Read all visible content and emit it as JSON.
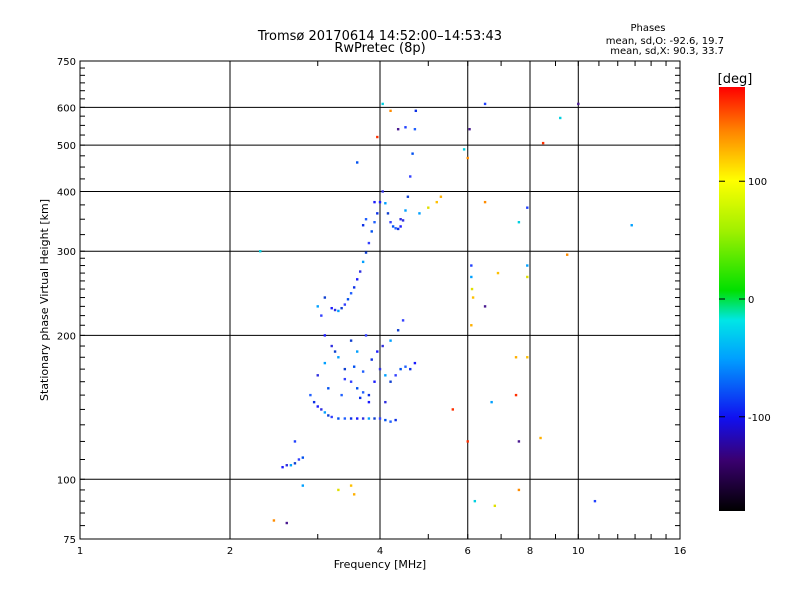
{
  "chart_data": {
    "type": "scatter",
    "title": "Tromsø 20170614 14:52:00–14:53:43",
    "subtitle": "RwPretec (8p)",
    "xlabel": "Frequency [MHz]",
    "ylabel": "Stationary phase Virtual Height [km]",
    "x_scale": "log2",
    "y_scale": "log",
    "xlim": [
      1,
      16
    ],
    "ylim": [
      75,
      750
    ],
    "x_ticks": [
      1,
      2,
      4,
      6,
      8,
      10,
      16
    ],
    "x_tick_labels": [
      "1",
      "2",
      "4",
      "6",
      "8",
      "10",
      "16"
    ],
    "y_ticks": [
      75,
      100,
      200,
      300,
      400,
      500,
      600,
      750
    ],
    "y_tick_labels": [
      "75",
      "100",
      "200",
      "300",
      "400",
      "500",
      "600",
      "750"
    ],
    "grid": true,
    "stats": {
      "heading": "Phases",
      "line1": "mean, sd,O: -92.6, 19.7",
      "line2": "mean, sd,X:  90.3, 33.7"
    },
    "colorbar": {
      "label": "[deg]",
      "range": [
        -180,
        180
      ],
      "ticks": [
        100,
        0,
        -100
      ],
      "tick_labels": [
        "100",
        "0",
        "-100"
      ]
    },
    "series": [
      {
        "trace": "F-trace lower branch (blue)",
        "points": [
          [
            2.55,
            106
          ],
          [
            2.6,
            107
          ],
          [
            2.65,
            107
          ],
          [
            2.7,
            108
          ],
          [
            2.75,
            110
          ],
          [
            2.8,
            111
          ],
          [
            2.9,
            150
          ],
          [
            2.95,
            145
          ],
          [
            3.0,
            142
          ],
          [
            3.05,
            140
          ],
          [
            3.1,
            138
          ],
          [
            3.15,
            136
          ],
          [
            3.2,
            135
          ],
          [
            3.3,
            134
          ],
          [
            3.4,
            134
          ],
          [
            3.5,
            134
          ],
          [
            3.6,
            134
          ],
          [
            3.7,
            134
          ],
          [
            3.8,
            134
          ],
          [
            3.9,
            134
          ],
          [
            4.0,
            134
          ],
          [
            4.1,
            133
          ],
          [
            4.2,
            132
          ],
          [
            4.3,
            133
          ],
          [
            3.2,
            228
          ],
          [
            3.25,
            226
          ],
          [
            3.3,
            225
          ],
          [
            3.35,
            228
          ],
          [
            3.4,
            232
          ],
          [
            3.45,
            238
          ],
          [
            3.5,
            245
          ],
          [
            3.55,
            252
          ],
          [
            3.6,
            262
          ],
          [
            3.65,
            272
          ],
          [
            3.7,
            285
          ],
          [
            3.75,
            298
          ],
          [
            3.8,
            312
          ],
          [
            3.85,
            330
          ],
          [
            3.9,
            345
          ],
          [
            3.95,
            360
          ],
          [
            4.0,
            380
          ],
          [
            4.05,
            400
          ],
          [
            4.1,
            378
          ],
          [
            4.15,
            360
          ],
          [
            4.2,
            345
          ],
          [
            4.25,
            338
          ],
          [
            4.3,
            335
          ],
          [
            4.35,
            334
          ],
          [
            4.4,
            338
          ],
          [
            4.45,
            348
          ],
          [
            4.5,
            365
          ],
          [
            4.55,
            390
          ],
          [
            4.6,
            430
          ],
          [
            4.65,
            480
          ],
          [
            4.7,
            540
          ],
          [
            4.72,
            590
          ],
          [
            3.1,
            200
          ],
          [
            3.2,
            190
          ],
          [
            3.3,
            180
          ],
          [
            3.4,
            170
          ],
          [
            3.5,
            160
          ],
          [
            3.6,
            155
          ],
          [
            3.7,
            152
          ],
          [
            3.8,
            150
          ],
          [
            3.9,
            160
          ],
          [
            4.0,
            170
          ],
          [
            4.1,
            165
          ],
          [
            4.2,
            160
          ],
          [
            4.3,
            165
          ],
          [
            4.4,
            170
          ],
          [
            4.5,
            172
          ],
          [
            4.6,
            170
          ],
          [
            4.7,
            175
          ],
          [
            3.0,
            165
          ],
          [
            3.1,
            175
          ],
          [
            3.25,
            185
          ],
          [
            3.4,
            162
          ],
          [
            3.55,
            172
          ],
          [
            3.7,
            168
          ],
          [
            3.85,
            178
          ],
          [
            3.95,
            185
          ],
          [
            4.05,
            190
          ],
          [
            4.2,
            195
          ],
          [
            4.35,
            205
          ],
          [
            4.45,
            215
          ],
          [
            3.15,
            155
          ],
          [
            3.35,
            150
          ],
          [
            3.65,
            148
          ],
          [
            3.8,
            145
          ],
          [
            4.1,
            145
          ],
          [
            3.6,
            185
          ],
          [
            3.5,
            195
          ],
          [
            3.75,
            200
          ],
          [
            3.6,
            460
          ],
          [
            3.75,
            350
          ],
          [
            3.7,
            340
          ],
          [
            3.9,
            380
          ],
          [
            4.4,
            350
          ],
          [
            3.0,
            230
          ],
          [
            3.1,
            240
          ],
          [
            3.05,
            220
          ]
        ]
      },
      {
        "trace": "scattered echoes (mixed phase)",
        "points": [
          [
            2.3,
            300
          ],
          [
            2.45,
            82
          ],
          [
            2.6,
            81
          ],
          [
            2.7,
            120
          ],
          [
            2.8,
            97
          ],
          [
            3.3,
            95
          ],
          [
            3.5,
            97
          ],
          [
            3.55,
            93
          ],
          [
            3.95,
            520
          ],
          [
            4.05,
            610
          ],
          [
            4.2,
            590
          ],
          [
            4.35,
            540
          ],
          [
            4.5,
            545
          ],
          [
            4.8,
            360
          ],
          [
            5.0,
            370
          ],
          [
            5.2,
            380
          ],
          [
            5.3,
            390
          ],
          [
            5.6,
            140
          ],
          [
            5.9,
            490
          ],
          [
            6.0,
            470
          ],
          [
            6.05,
            540
          ],
          [
            6.1,
            280
          ],
          [
            6.1,
            265
          ],
          [
            6.12,
            250
          ],
          [
            6.15,
            240
          ],
          [
            6.1,
            210
          ],
          [
            6.0,
            120
          ],
          [
            6.2,
            90
          ],
          [
            6.5,
            380
          ],
          [
            6.5,
            230
          ],
          [
            6.5,
            610
          ],
          [
            6.7,
            145
          ],
          [
            6.8,
            88
          ],
          [
            6.9,
            270
          ],
          [
            7.5,
            180
          ],
          [
            7.5,
            150
          ],
          [
            7.6,
            345
          ],
          [
            7.6,
            95
          ],
          [
            7.6,
            120
          ],
          [
            7.9,
            370
          ],
          [
            7.9,
            280
          ],
          [
            7.9,
            265
          ],
          [
            7.9,
            180
          ],
          [
            8.4,
            122
          ],
          [
            8.5,
            505
          ],
          [
            9.2,
            570
          ],
          [
            9.5,
            295
          ],
          [
            10.0,
            610
          ],
          [
            10.8,
            90
          ],
          [
            12.8,
            340
          ]
        ]
      }
    ]
  }
}
